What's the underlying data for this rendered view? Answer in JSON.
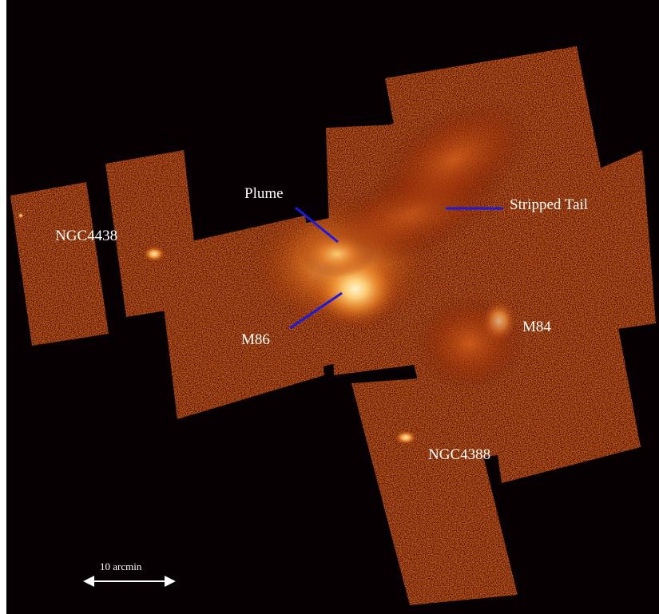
{
  "image": {
    "subject": "X-ray mosaic image",
    "palette": {
      "background": "#070003",
      "faint": "#3a0904",
      "dim": "#6e1a06",
      "mid": "#b53b0c",
      "bright": "#f08a2a",
      "peak": "#fff3c0",
      "pointer": "#1a1ae6",
      "scale_bar": "#ffffff"
    }
  },
  "labels": {
    "plume": "Plume",
    "stripped_tail": "Stripped Tail",
    "ngc4438": "NGC4438",
    "m86": "M86",
    "m84": "M84",
    "ngc4388": "NGC4388"
  },
  "scale_bar": {
    "label": "10 arcmin"
  }
}
